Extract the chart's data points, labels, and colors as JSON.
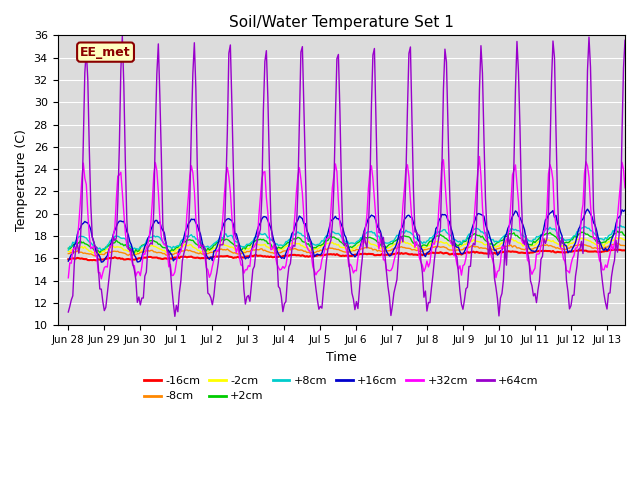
{
  "title": "Soil/Water Temperature Set 1",
  "xlabel": "Time",
  "ylabel": "Temperature (C)",
  "ylim": [
    10,
    36
  ],
  "xlim": [
    -0.3,
    15.5
  ],
  "x_tick_labels": [
    "Jun 28",
    "Jun 29",
    "Jun 30",
    "Jul 1",
    "Jul 2",
    "Jul 3",
    "Jul 4",
    "Jul 5",
    "Jul 6",
    "Jul 7",
    "Jul 8",
    "Jul 9",
    "Jul 10",
    "Jul 11",
    "Jul 12",
    "Jul 13"
  ],
  "x_tick_positions": [
    0,
    1,
    2,
    3,
    4,
    5,
    6,
    7,
    8,
    9,
    10,
    11,
    12,
    13,
    14,
    15
  ],
  "y_ticks": [
    10,
    12,
    14,
    16,
    18,
    20,
    22,
    24,
    26,
    28,
    30,
    32,
    34,
    36
  ],
  "label_box_text": "EE_met",
  "label_box_bg": "#FFFFC0",
  "label_box_edge": "#8B0000",
  "plot_bg_color": "#DCDCDC",
  "series": [
    {
      "label": "-16cm",
      "color": "#FF0000"
    },
    {
      "label": "-8cm",
      "color": "#FF8800"
    },
    {
      "label": "-2cm",
      "color": "#FFFF00"
    },
    {
      "label": "+2cm",
      "color": "#00CC00"
    },
    {
      "label": "+8cm",
      "color": "#00CCCC"
    },
    {
      "label": "+16cm",
      "color": "#0000CC"
    },
    {
      "label": "+32cm",
      "color": "#FF00FF"
    },
    {
      "label": "+64cm",
      "color": "#9900CC"
    }
  ]
}
